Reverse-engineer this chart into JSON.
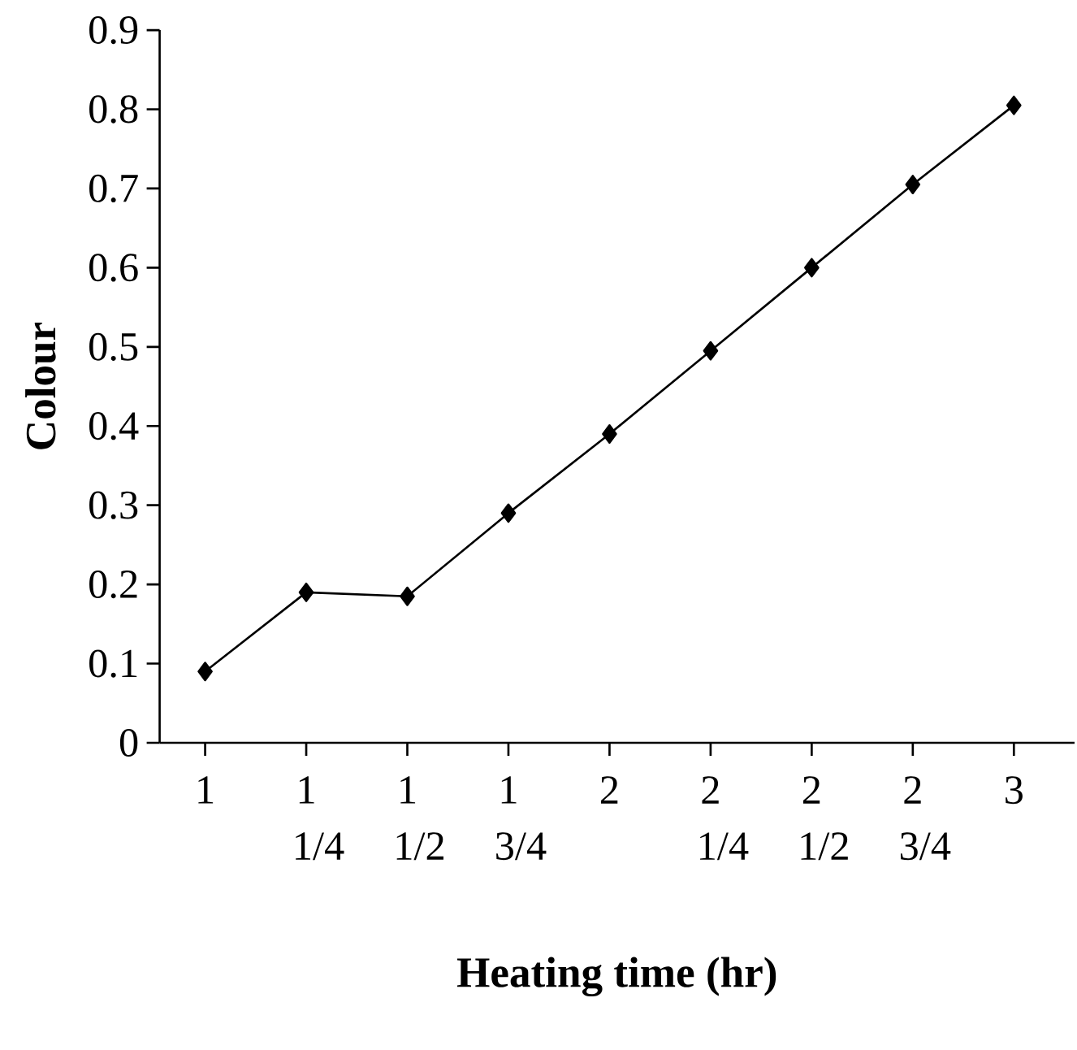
{
  "chart_data": {
    "type": "line",
    "xlabel": "Heating time (hr)",
    "ylabel": "Colour",
    "categories": [
      "1",
      "1 1/4",
      "1 1/2",
      "1 3/4",
      "2",
      "2 1/4",
      "2 1/2",
      "2 3/4",
      "3"
    ],
    "values": [
      0.09,
      0.19,
      0.185,
      0.29,
      0.39,
      0.495,
      0.6,
      0.705,
      0.805
    ],
    "color": "#000000",
    "marker": "diamond",
    "line_style": "solid",
    "ylim": [
      0,
      0.9
    ],
    "yticks": [
      0,
      0.1,
      0.2,
      0.3,
      0.4,
      0.5,
      0.6,
      0.7,
      0.8,
      0.9
    ],
    "grid": false
  }
}
